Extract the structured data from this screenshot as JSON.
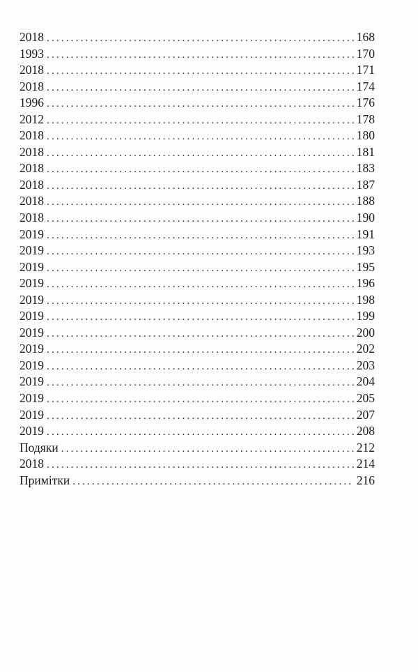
{
  "toc": {
    "entries": [
      {
        "title": "2018",
        "page": "168"
      },
      {
        "title": "1993",
        "page": "170"
      },
      {
        "title": "2018",
        "page": "171"
      },
      {
        "title": "2018",
        "page": "174"
      },
      {
        "title": "1996",
        "page": "176"
      },
      {
        "title": "2012",
        "page": "178"
      },
      {
        "title": "2018",
        "page": "180"
      },
      {
        "title": "2018",
        "page": "181"
      },
      {
        "title": "2018",
        "page": "183"
      },
      {
        "title": "2018",
        "page": "187"
      },
      {
        "title": "2018",
        "page": "188"
      },
      {
        "title": "2018",
        "page": "190"
      },
      {
        "title": "2019",
        "page": "191"
      },
      {
        "title": "2019",
        "page": "193"
      },
      {
        "title": "2019",
        "page": "195"
      },
      {
        "title": "2019",
        "page": "196"
      },
      {
        "title": "2019",
        "page": "198"
      },
      {
        "title": "2019",
        "page": "199"
      },
      {
        "title": "2019",
        "page": "200"
      },
      {
        "title": "2019",
        "page": "202"
      },
      {
        "title": "2019",
        "page": "203"
      },
      {
        "title": "2019",
        "page": "204"
      },
      {
        "title": "2019",
        "page": "205"
      },
      {
        "title": "2019",
        "page": "207"
      },
      {
        "title": "2019",
        "page": "208"
      },
      {
        "title": "Подяки",
        "page": "212"
      },
      {
        "title": "2018",
        "page": "214"
      },
      {
        "title": "Примітки",
        "page": "216"
      }
    ]
  }
}
